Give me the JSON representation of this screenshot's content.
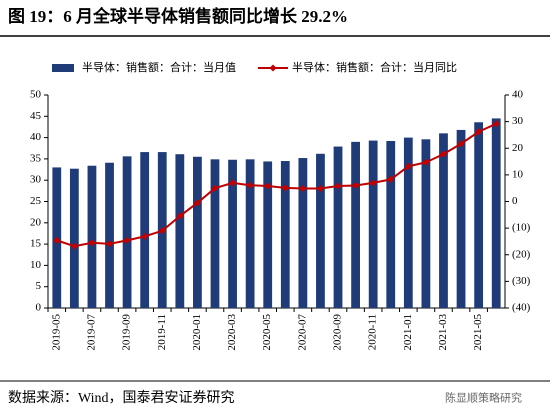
{
  "chart_data": {
    "type": "bar_line",
    "title": "图 19：6 月全球半导体销售额同比增长 29.2%",
    "source": "数据来源：Wind，国泰君安证券研究",
    "watermark": "陈显顺策略研究",
    "categories": [
      "2019-05",
      null,
      "2019-07",
      null,
      "2019-09",
      null,
      "2019-11",
      null,
      "2020-01",
      null,
      "2020-03",
      null,
      "2020-05",
      null,
      "2020-07",
      null,
      "2020-09",
      null,
      "2020-11",
      null,
      "2021-01",
      null,
      "2021-03",
      null,
      "2021-05",
      null
    ],
    "series": [
      {
        "name": "半导体：销售额：合计：当月值",
        "type": "bar",
        "color": "#1f3c78",
        "values": [
          33.0,
          32.7,
          33.4,
          34.1,
          35.6,
          36.6,
          36.6,
          36.1,
          35.5,
          34.9,
          34.8,
          34.9,
          34.4,
          34.5,
          35.2,
          36.2,
          37.9,
          39.0,
          39.3,
          39.2,
          40.0,
          39.6,
          41.0,
          41.8,
          43.6,
          44.5
        ]
      },
      {
        "name": "半导体：销售额：合计：当月同比",
        "type": "line",
        "axis": "y2",
        "color": "#c00000",
        "values": [
          -14.6,
          -16.8,
          -15.5,
          -15.9,
          -14.6,
          -13.1,
          -11.0,
          -5.5,
          -0.5,
          5.0,
          7.0,
          6.1,
          5.8,
          5.1,
          4.9,
          4.9,
          5.8,
          6.0,
          7.0,
          8.3,
          13.2,
          14.7,
          17.8,
          21.7,
          26.2,
          29.2
        ]
      }
    ],
    "ylim": [
      0,
      50
    ],
    "yticks": [
      0,
      5,
      10,
      15,
      20,
      25,
      30,
      35,
      40,
      45,
      50
    ],
    "y2lim": [
      -40,
      40
    ],
    "y2ticks": [
      {
        "value": -40,
        "label": "(40)"
      },
      {
        "value": -30,
        "label": "(30)"
      },
      {
        "value": -20,
        "label": "(20)"
      },
      {
        "value": -10,
        "label": "(10)"
      },
      0,
      10,
      20,
      30,
      40
    ],
    "legend": "top",
    "grid": false
  }
}
